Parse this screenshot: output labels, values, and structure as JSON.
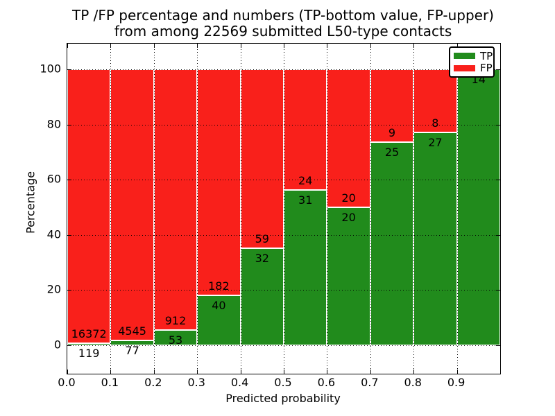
{
  "title": {
    "line1": "TP /FP percentage and numbers (TP-bottom value, FP-upper)",
    "line2": "from among 22569 submitted L50-type contacts"
  },
  "axes": {
    "xlabel": "Predicted probability",
    "ylabel": "Percentage",
    "x_tick_labels": [
      "0.0",
      "0.1",
      "0.2",
      "0.3",
      "0.4",
      "0.5",
      "0.6",
      "0.7",
      "0.8",
      "0.9"
    ],
    "y_tick_labels": [
      "0",
      "20",
      "40",
      "60",
      "80",
      "100"
    ]
  },
  "legend": {
    "items": [
      {
        "label": "TP",
        "color": "#218b1c"
      },
      {
        "label": "FP",
        "color": "#f9201b"
      }
    ]
  },
  "colors": {
    "tp_green": "#218b1c",
    "fp_red": "#f9201b",
    "axis": "#000000",
    "grid": "#000000",
    "background": "#ffffff"
  },
  "chart_data": {
    "type": "bar",
    "stacked": true,
    "title": "TP /FP percentage and numbers (TP-bottom value, FP-upper) from among 22569 submitted L50-type contacts",
    "xlabel": "Predicted probability",
    "ylabel": "Percentage",
    "bins": [
      "0.0-0.1",
      "0.1-0.2",
      "0.2-0.3",
      "0.3-0.4",
      "0.4-0.5",
      "0.5-0.6",
      "0.6-0.7",
      "0.7-0.8",
      "0.8-0.9",
      "0.9-1.0"
    ],
    "bin_edges": [
      0.0,
      0.1,
      0.2,
      0.3,
      0.4,
      0.5,
      0.6,
      0.7,
      0.8,
      0.9,
      1.0
    ],
    "series": [
      {
        "name": "TP",
        "color": "#218b1c",
        "counts": [
          119,
          77,
          53,
          40,
          32,
          31,
          20,
          25,
          27,
          14
        ]
      },
      {
        "name": "FP",
        "color": "#f9201b",
        "counts": [
          16372,
          4545,
          912,
          182,
          59,
          24,
          20,
          9,
          8,
          0
        ]
      }
    ],
    "tp_percent": [
      0.72,
      1.67,
      5.49,
      18.02,
      35.16,
      56.36,
      50.0,
      73.53,
      77.14,
      100.0
    ],
    "total_contacts": 22569,
    "xlim": [
      0.0,
      1.0
    ],
    "ylim": [
      -10.3,
      109.3
    ],
    "grid": true,
    "grid_linestyle": "dotted",
    "legend_position": "upper right",
    "value_label_rule": "FP count just above TP/FP boundary, TP count just below boundary"
  }
}
